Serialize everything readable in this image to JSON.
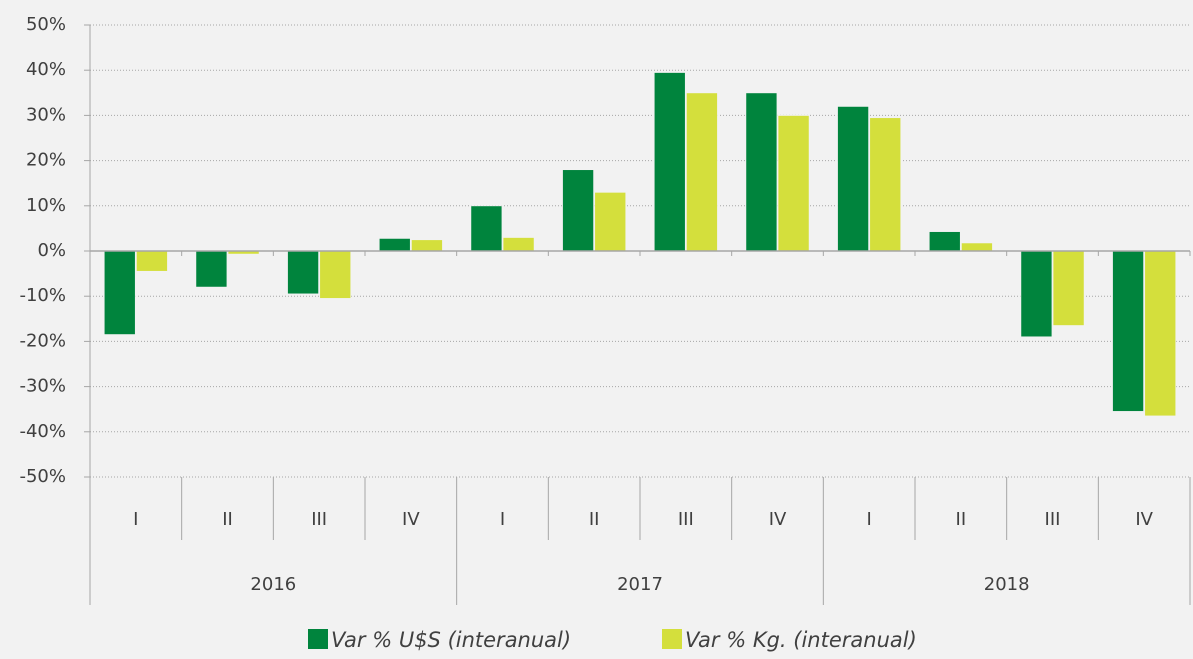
{
  "chart_data": {
    "type": "bar",
    "categories": [
      "I",
      "II",
      "III",
      "IV",
      "I",
      "II",
      "III",
      "IV",
      "I",
      "II",
      "III",
      "IV"
    ],
    "category_groups": [
      "2016",
      "2017",
      "2018"
    ],
    "series": [
      {
        "name": "Var % U$S (interanual)",
        "color": "#00843d",
        "values": [
          -18.5,
          -8,
          -9.5,
          2.8,
          10,
          18,
          39.5,
          35,
          32,
          4.3,
          -19,
          -35.5
        ]
      },
      {
        "name": "Var % Kg. (interanual)",
        "color": "#d4df3c",
        "values": [
          -4.5,
          -0.7,
          -10.5,
          2.5,
          3,
          13,
          35,
          30,
          29.5,
          1.8,
          -16.5,
          -36.5
        ]
      }
    ],
    "ylim": [
      -50,
      50
    ],
    "yticks": [
      {
        "value": -50,
        "label": "-50%"
      },
      {
        "value": -40,
        "label": "-40%"
      },
      {
        "value": -30,
        "label": "-30%"
      },
      {
        "value": -20,
        "label": "-20%"
      },
      {
        "value": -10,
        "label": "-10%"
      },
      {
        "value": 0,
        "label": "0%"
      },
      {
        "value": 10,
        "label": "10%"
      },
      {
        "value": 20,
        "label": "20%"
      },
      {
        "value": 30,
        "label": "30%"
      },
      {
        "value": 40,
        "label": "40%"
      },
      {
        "value": 50,
        "label": "50%"
      }
    ],
    "grid": true,
    "legend": "bottom"
  }
}
